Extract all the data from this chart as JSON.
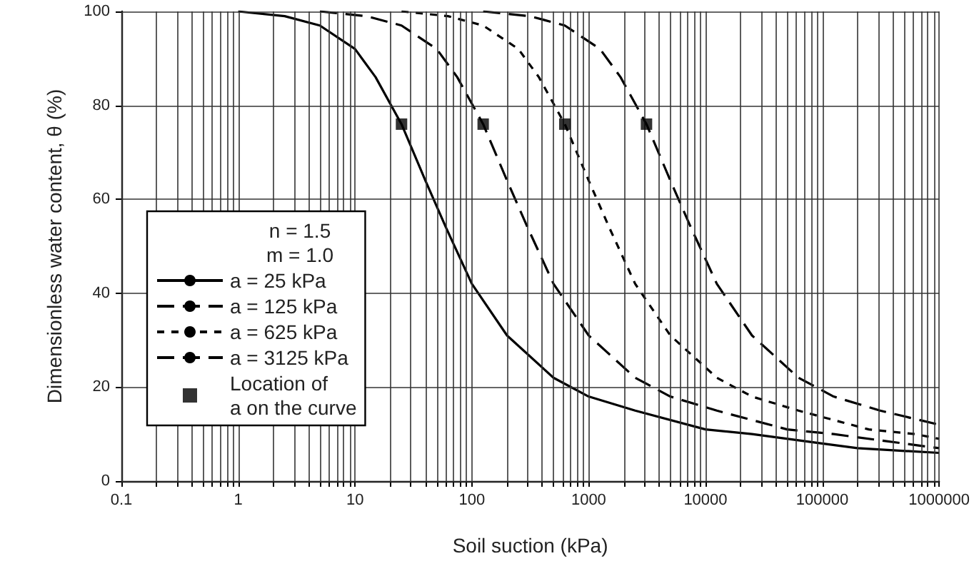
{
  "chart_data": {
    "type": "line",
    "xlabel": "Soil suction (kPa)",
    "ylabel": "Dimensionless water content, θ (%)",
    "legend_title": "n = 1.5\nm = 1.0",
    "log": "x",
    "grid": true,
    "legend": "bottom left",
    "marker": "none",
    "xlim": [
      0.1,
      1000000
    ],
    "xticks": [
      0.1,
      1,
      10,
      100,
      1000,
      10000,
      100000,
      1000000
    ],
    "ylim": [
      0,
      100
    ],
    "yticks": [
      0,
      20,
      40,
      60,
      80,
      100
    ],
    "series": [
      {
        "name": "a = 25 kPa",
        "color": "#000000",
        "line_style": "solid",
        "x": [
          1,
          2.5,
          5,
          10,
          15,
          25,
          40,
          60,
          100,
          200,
          500,
          1000,
          2500,
          10000,
          25000,
          100000,
          200000,
          1000000
        ],
        "values": [
          100,
          99,
          97,
          92,
          86,
          76,
          64,
          54,
          42,
          31,
          22,
          18,
          15,
          11,
          10,
          8,
          7,
          6
        ]
      },
      {
        "name": "a = 125 kPa",
        "color": "#000000",
        "line_style": "dashed",
        "x": [
          5,
          12.5,
          25,
          50,
          75,
          125,
          200,
          300,
          500,
          1000,
          2500,
          5000,
          12500,
          50000,
          125000,
          500000,
          1000000
        ],
        "values": [
          100,
          99,
          97,
          92,
          86,
          76,
          64,
          54,
          42,
          31,
          22,
          18,
          15,
          11,
          10,
          8,
          7
        ]
      },
      {
        "name": "a = 625 kPa",
        "color": "#000000",
        "line_style": "dotted",
        "x": [
          25,
          62.5,
          125,
          250,
          375,
          625,
          1000,
          1500,
          2500,
          5000,
          12500,
          25000,
          62500,
          250000,
          625000,
          1000000
        ],
        "values": [
          100,
          99,
          97,
          92,
          86,
          76,
          64,
          54,
          42,
          31,
          22,
          18,
          15,
          11,
          10,
          9
        ]
      },
      {
        "name": "a = 3125 kPa",
        "color": "#000000",
        "line_style": "dashed",
        "x": [
          125,
          312.5,
          625,
          1250,
          1875,
          3125,
          5000,
          7500,
          12500,
          25000,
          62500,
          125000,
          312500,
          1000000
        ],
        "values": [
          100,
          99,
          97,
          92,
          86,
          76,
          64,
          54,
          42,
          31,
          22,
          18,
          15,
          12
        ]
      },
      {
        "name": "Location of\na on the curve",
        "type": "scatter",
        "marker": "square",
        "color": "#000000",
        "x": [
          25,
          125,
          625,
          3125
        ],
        "values": [
          76,
          76,
          76,
          76
        ]
      }
    ]
  }
}
